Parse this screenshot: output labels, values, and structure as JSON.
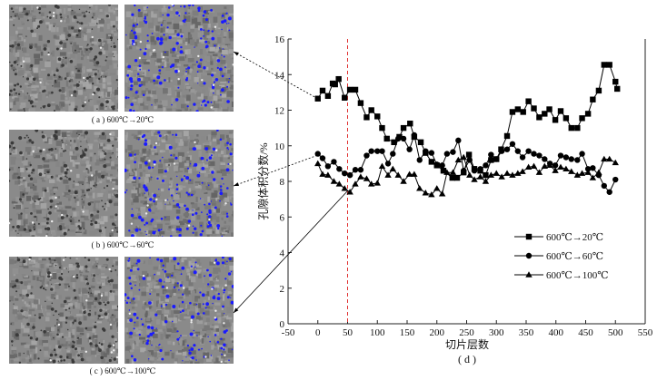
{
  "panels": [
    {
      "caption": "( a )  600℃→20℃"
    },
    {
      "caption": "( b )  600℃→60℃"
    },
    {
      "caption": "( c )  600℃→100℃"
    }
  ],
  "colors": {
    "pores": "#1a1aff",
    "grey": "#8a8a8a",
    "marker_line": "#e03030"
  },
  "chart_data": {
    "type": "line",
    "title": "",
    "caption": "( d )",
    "xlabel": "切片层数",
    "ylabel": "孔隙体积分数/%",
    "xlim": [
      -50,
      550
    ],
    "ylim": [
      0,
      16
    ],
    "xticks": [
      -50,
      0,
      50,
      100,
      150,
      200,
      250,
      300,
      350,
      400,
      450,
      500,
      550
    ],
    "yticks": [
      0,
      2,
      4,
      6,
      8,
      10,
      12,
      14,
      16
    ],
    "vline_x": 50,
    "legend_position": "center-right",
    "series": [
      {
        "name": "600℃→20℃",
        "marker": "square",
        "x": [
          0,
          8,
          17,
          25,
          29,
          35,
          45,
          54,
          63,
          72,
          82,
          90,
          100,
          108,
          116,
          128,
          137,
          144,
          155,
          162,
          173,
          181,
          191,
          200,
          211,
          226,
          234,
          245,
          254,
          263,
          273,
          282,
          291,
          300,
          308,
          318,
          327,
          336,
          345,
          354,
          363,
          372,
          381,
          389,
          399,
          408,
          417,
          426,
          436,
          444,
          454,
          462,
          472,
          481,
          490,
          500,
          503
        ],
        "y": [
          12.65,
          13.1,
          12.8,
          13.5,
          13.45,
          13.75,
          12.7,
          13.15,
          13.15,
          12.4,
          11.6,
          12.0,
          11.65,
          11.0,
          10.4,
          10.2,
          10.5,
          11.0,
          11.25,
          10.5,
          10.2,
          9.6,
          9.1,
          8.9,
          8.6,
          8.2,
          8.2,
          8.5,
          9.5,
          8.7,
          8.6,
          8.35,
          9.2,
          9.25,
          9.8,
          10.55,
          11.9,
          12.05,
          11.9,
          12.5,
          12.1,
          11.6,
          11.8,
          12.05,
          11.45,
          11.95,
          11.55,
          11.0,
          11.0,
          11.55,
          11.8,
          12.6,
          13.1,
          14.55,
          14.55,
          13.6,
          13.2
        ]
      },
      {
        "name": "600℃→60℃",
        "marker": "circle",
        "x": [
          0,
          8,
          17,
          27,
          36,
          45,
          54,
          63,
          72,
          82,
          90,
          100,
          108,
          118,
          126,
          135,
          144,
          154,
          162,
          171,
          181,
          191,
          200,
          209,
          217,
          227,
          236,
          245,
          255,
          263,
          273,
          282,
          291,
          300,
          309,
          318,
          327,
          336,
          344,
          354,
          363,
          372,
          381,
          390,
          399,
          408,
          417,
          426,
          436,
          444,
          454,
          462,
          472,
          481,
          490,
          500
        ],
        "y": [
          9.55,
          9.3,
          8.85,
          9.1,
          8.7,
          8.45,
          8.35,
          8.65,
          8.65,
          9.45,
          9.7,
          9.7,
          9.7,
          9.0,
          9.55,
          10.4,
          10.4,
          9.8,
          10.6,
          9.2,
          9.7,
          9.6,
          8.95,
          8.9,
          9.55,
          9.65,
          10.3,
          8.6,
          9.2,
          8.6,
          8.7,
          8.9,
          9.5,
          9.25,
          9.7,
          9.8,
          10.1,
          9.7,
          9.35,
          9.7,
          9.55,
          9.45,
          9.25,
          9.0,
          8.9,
          9.45,
          9.35,
          9.25,
          9.2,
          9.55,
          8.7,
          8.75,
          8.35,
          7.75,
          7.4,
          8.1
        ]
      },
      {
        "name": "600℃→100℃",
        "marker": "triangle",
        "x": [
          0,
          8,
          17,
          27,
          36,
          45,
          54,
          63,
          72,
          82,
          90,
          100,
          108,
          118,
          126,
          135,
          144,
          154,
          162,
          171,
          181,
          191,
          200,
          209,
          217,
          227,
          236,
          245,
          255,
          263,
          273,
          282,
          291,
          300,
          309,
          318,
          327,
          336,
          344,
          354,
          363,
          372,
          381,
          390,
          399,
          408,
          417,
          426,
          436,
          444,
          454,
          462,
          472,
          481,
          490,
          500
        ],
        "y": [
          9.0,
          8.4,
          8.35,
          8.0,
          7.85,
          7.6,
          7.4,
          7.85,
          8.25,
          8.15,
          7.85,
          7.9,
          8.85,
          8.35,
          8.7,
          8.35,
          8.0,
          8.4,
          8.4,
          7.6,
          7.35,
          7.25,
          7.6,
          7.3,
          8.5,
          8.5,
          9.2,
          9.35,
          8.35,
          8.1,
          8.25,
          8.0,
          8.35,
          8.45,
          8.25,
          8.45,
          8.35,
          8.45,
          8.55,
          8.8,
          8.85,
          8.5,
          8.85,
          8.9,
          8.6,
          8.8,
          8.7,
          8.55,
          8.35,
          8.45,
          8.5,
          8.2,
          8.5,
          9.25,
          9.25,
          9.05
        ]
      }
    ]
  }
}
